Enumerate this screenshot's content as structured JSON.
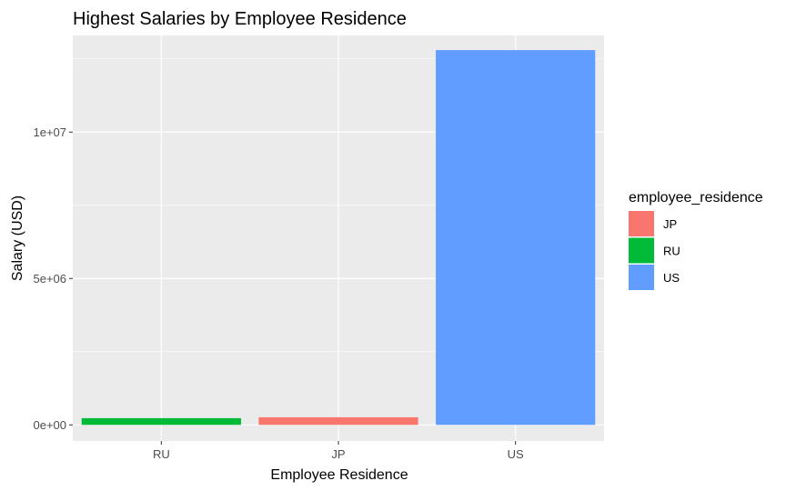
{
  "chart_data": {
    "type": "bar",
    "title": "Highest Salaries by Employee Residence",
    "xlabel": "Employee Residence",
    "ylabel": "Salary (USD)",
    "categories": [
      "RU",
      "JP",
      "US"
    ],
    "values": [
      230000,
      260000,
      12800000
    ],
    "bar_colors": [
      "#00BA38",
      "#F8766D",
      "#619CFF"
    ],
    "ylim": [
      -550000,
      13300000
    ],
    "yticks": [
      0,
      5000000,
      10000000
    ],
    "ytick_labels": [
      "0e+00",
      "5e+06",
      "1e+07"
    ],
    "grid": true,
    "panel_background": "#EBEBEB",
    "grid_color": "#FFFFFF",
    "legend": {
      "title": "employee_residence",
      "position": "right",
      "items": [
        {
          "label": "JP",
          "color": "#F8766D"
        },
        {
          "label": "RU",
          "color": "#00BA38"
        },
        {
          "label": "US",
          "color": "#619CFF"
        }
      ]
    }
  }
}
